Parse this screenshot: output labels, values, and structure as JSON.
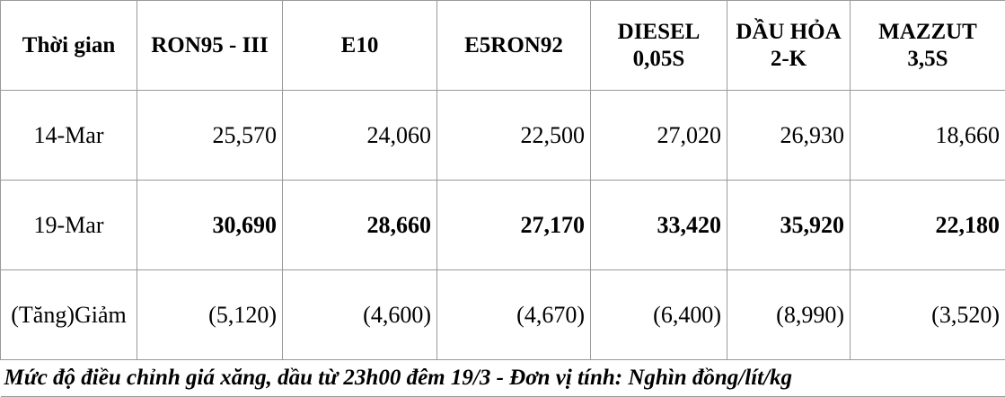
{
  "table": {
    "headers": [
      "Thời gian",
      "RON95 - III",
      "E10",
      "E5RON92",
      "DIESEL 0,05S",
      "DẦU HỎA 2-K",
      "MAZZUT 3,5S"
    ],
    "rows": [
      {
        "label": "14-Mar",
        "values": [
          "25,570",
          "24,060",
          "22,500",
          "27,020",
          "26,930",
          "18,660"
        ],
        "bold": false
      },
      {
        "label": "19-Mar",
        "values": [
          "30,690",
          "28,660",
          "27,170",
          "33,420",
          "35,920",
          "22,180"
        ],
        "bold": true
      },
      {
        "label": "(Tăng)Giảm",
        "values": [
          "(5,120)",
          "(4,600)",
          "(4,670)",
          "(6,400)",
          "(8,990)",
          "(3,520)"
        ],
        "bold": false
      }
    ],
    "note": "Mức độ điều chỉnh giá xăng, dầu từ 23h00 đêm 19/3 - Đơn vị tính: Nghìn đồng/lít/kg"
  }
}
